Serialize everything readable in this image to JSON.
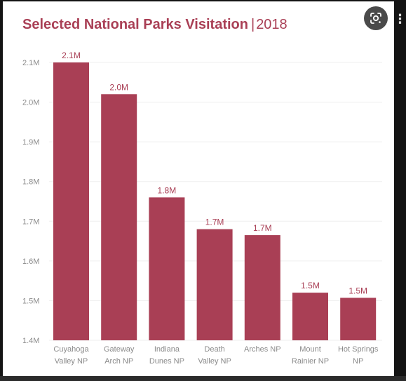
{
  "header": {
    "title_main": "Selected National Parks Visitation",
    "title_separator": "|",
    "title_year": "2018"
  },
  "icons": {
    "lens": "google-lens-icon",
    "menu": "vertical-ellipsis-icon"
  },
  "colors": {
    "bar": "#a93f55",
    "label": "#a93f55",
    "tick": "#8a8a8a",
    "grid": "#efefef"
  },
  "chart_data": {
    "type": "bar",
    "title": "Selected National Parks Visitation | 2018",
    "xlabel": "",
    "ylabel": "",
    "categories": [
      [
        "Cuyahoga",
        "Valley NP"
      ],
      [
        "Gateway",
        "Arch NP"
      ],
      [
        "Indiana",
        "Dunes NP"
      ],
      [
        "Death",
        "Valley NP"
      ],
      [
        "Arches NP"
      ],
      [
        "Mount",
        "Rainier NP"
      ],
      [
        "Hot Springs",
        "NP"
      ]
    ],
    "values": [
      2.1,
      2.02,
      1.76,
      1.68,
      1.665,
      1.52,
      1.507
    ],
    "data_labels": [
      "2.1M",
      "2.0M",
      "1.8M",
      "1.7M",
      "1.7M",
      "1.5M",
      "1.5M"
    ],
    "ylim": [
      1.4,
      2.1
    ],
    "yticks": [
      1.4,
      1.5,
      1.6,
      1.7,
      1.8,
      1.9,
      2.0,
      2.1
    ],
    "ytick_labels": [
      "1.4M",
      "1.5M",
      "1.6M",
      "1.7M",
      "1.8M",
      "1.9M",
      "2.0M",
      "2.1M"
    ],
    "grid": true,
    "legend": "none"
  }
}
